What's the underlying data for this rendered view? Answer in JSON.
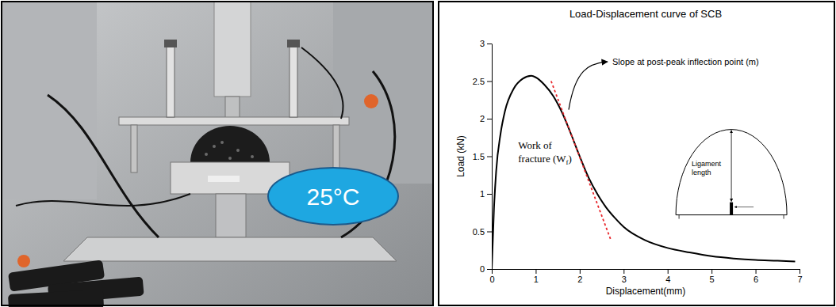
{
  "photo": {
    "badge": "25°C"
  },
  "chart_data": {
    "type": "line",
    "title": "Load-Displacement curve of SCB",
    "xlabel": "Displacement(mm)",
    "ylabel": "Load (kN)",
    "xlim": [
      0,
      7
    ],
    "xticks": [
      0,
      1,
      2,
      3,
      4,
      5,
      6,
      7
    ],
    "ylim": [
      0,
      3
    ],
    "yticks": [
      0,
      0.5,
      1,
      1.5,
      2,
      2.5,
      3
    ],
    "grid": false,
    "series": [
      {
        "color": "#000000",
        "line_style": "solid",
        "x": [
          0,
          0.05,
          0.1,
          0.2,
          0.3,
          0.5,
          0.7,
          0.9,
          1.0,
          1.2,
          1.4,
          1.6,
          1.8,
          2.0,
          2.2,
          2.4,
          2.6,
          2.8,
          3.0,
          3.5,
          4.0,
          4.5,
          5.0,
          5.5,
          6.0,
          6.5,
          6.9
        ],
        "values": [
          0,
          0.8,
          1.3,
          1.8,
          2.1,
          2.4,
          2.53,
          2.57,
          2.55,
          2.45,
          2.3,
          2.08,
          1.8,
          1.5,
          1.22,
          1.0,
          0.82,
          0.68,
          0.56,
          0.38,
          0.28,
          0.22,
          0.17,
          0.14,
          0.12,
          0.11,
          0.1
        ]
      },
      {
        "color": "#e8262b",
        "line_style": "dotted",
        "x": [
          1.35,
          2.7
        ],
        "values": [
          2.5,
          0.4
        ]
      }
    ],
    "annotations": {
      "slope": "Slope at post-peak inflection point (m)",
      "work": {
        "lines": [
          "Work of",
          "fracture (W"
        ],
        "subscript": "f",
        "close": ")"
      },
      "inset": [
        "Ligament",
        "length"
      ]
    }
  }
}
